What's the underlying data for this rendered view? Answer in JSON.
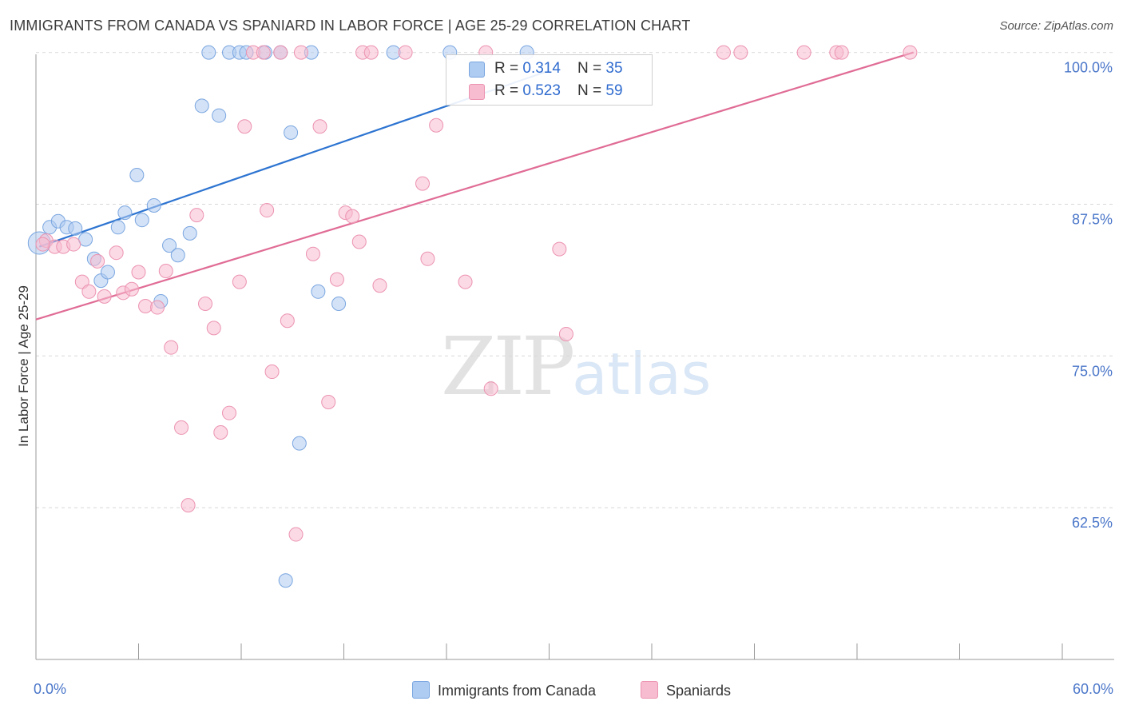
{
  "title": "IMMIGRANTS FROM CANADA VS SPANIARD IN LABOR FORCE | AGE 25-29 CORRELATION CHART",
  "source": "Source: ZipAtlas.com",
  "watermark": {
    "zip": "ZIP",
    "atlas": "atlas"
  },
  "legend": {
    "rows": [
      {
        "r_label": "R = ",
        "r_value": "0.314",
        "n_label": "N = ",
        "n_value": "35",
        "color": "#aecbf1"
      },
      {
        "r_label": "R = ",
        "r_value": "0.523",
        "n_label": "N = ",
        "n_value": "59",
        "color": "#f7bcd0"
      }
    ]
  },
  "bottom_legend": [
    "Immigrants from Canada",
    "Spaniards"
  ],
  "chart_data": {
    "type": "scatter",
    "title": "IMMIGRANTS FROM CANADA VS SPANIARD IN LABOR FORCE | AGE 25-29 CORRELATION CHART",
    "xlabel": "",
    "ylabel": "In Labor Force | Age 25-29",
    "xlim": [
      0,
      60
    ],
    "ylim": [
      50,
      100.5
    ],
    "x_tick_labels": [
      "0.0%",
      "60.0%"
    ],
    "y_ticks": [
      62.5,
      75.0,
      87.5,
      100.0
    ],
    "y_tick_labels": [
      "62.5%",
      "75.0%",
      "87.5%",
      "100.0%"
    ],
    "grid": true,
    "series": [
      {
        "name": "Immigrants from Canada",
        "color": "#aecbf1",
        "edge_color": "#7aa6e0",
        "line_color": "#2d74d1",
        "trend": {
          "x": [
            0.2,
            30.0
          ],
          "y": [
            84.0,
            98.5
          ]
        },
        "points": [
          {
            "x": 0.2,
            "y": 84.3,
            "big": true
          },
          {
            "x": 0.8,
            "y": 85.6
          },
          {
            "x": 1.3,
            "y": 86.1
          },
          {
            "x": 1.8,
            "y": 85.6
          },
          {
            "x": 2.3,
            "y": 85.5
          },
          {
            "x": 2.9,
            "y": 84.6
          },
          {
            "x": 3.4,
            "y": 83.0
          },
          {
            "x": 3.8,
            "y": 81.2
          },
          {
            "x": 4.2,
            "y": 81.9
          },
          {
            "x": 4.8,
            "y": 85.6
          },
          {
            "x": 5.2,
            "y": 86.8
          },
          {
            "x": 5.9,
            "y": 89.9
          },
          {
            "x": 6.2,
            "y": 86.2
          },
          {
            "x": 6.9,
            "y": 87.4
          },
          {
            "x": 7.3,
            "y": 79.5
          },
          {
            "x": 7.8,
            "y": 84.1
          },
          {
            "x": 8.3,
            "y": 83.3
          },
          {
            "x": 9.0,
            "y": 85.1
          },
          {
            "x": 9.7,
            "y": 95.6
          },
          {
            "x": 10.1,
            "y": 100.0
          },
          {
            "x": 10.7,
            "y": 94.8
          },
          {
            "x": 11.3,
            "y": 100.0
          },
          {
            "x": 11.9,
            "y": 100.0
          },
          {
            "x": 12.3,
            "y": 100.0
          },
          {
            "x": 13.4,
            "y": 100.0
          },
          {
            "x": 14.3,
            "y": 100.0
          },
          {
            "x": 14.6,
            "y": 56.5
          },
          {
            "x": 14.9,
            "y": 93.4
          },
          {
            "x": 15.4,
            "y": 67.8
          },
          {
            "x": 16.1,
            "y": 100.0
          },
          {
            "x": 16.5,
            "y": 80.3
          },
          {
            "x": 17.7,
            "y": 79.3
          },
          {
            "x": 20.9,
            "y": 100.0
          },
          {
            "x": 24.2,
            "y": 100.0
          },
          {
            "x": 28.7,
            "y": 100.0
          }
        ]
      },
      {
        "name": "Spaniards",
        "color": "#f7bcd0",
        "edge_color": "#ec93b0",
        "line_color": "#e06c95",
        "trend": {
          "x": [
            0.0,
            51.3
          ],
          "y": [
            78.0,
            100.0
          ]
        },
        "points": [
          {
            "x": 0.6,
            "y": 84.5
          },
          {
            "x": 1.1,
            "y": 84.0
          },
          {
            "x": 1.6,
            "y": 84.0
          },
          {
            "x": 2.2,
            "y": 84.2
          },
          {
            "x": 2.7,
            "y": 81.1
          },
          {
            "x": 3.1,
            "y": 80.3
          },
          {
            "x": 3.6,
            "y": 82.8
          },
          {
            "x": 4.0,
            "y": 79.9
          },
          {
            "x": 4.7,
            "y": 83.5
          },
          {
            "x": 5.1,
            "y": 80.2
          },
          {
            "x": 5.6,
            "y": 80.5
          },
          {
            "x": 6.0,
            "y": 81.9
          },
          {
            "x": 6.4,
            "y": 79.1
          },
          {
            "x": 7.1,
            "y": 79.0
          },
          {
            "x": 7.6,
            "y": 82.0
          },
          {
            "x": 7.9,
            "y": 75.7
          },
          {
            "x": 8.5,
            "y": 69.1
          },
          {
            "x": 8.9,
            "y": 62.7
          },
          {
            "x": 9.4,
            "y": 86.6
          },
          {
            "x": 9.9,
            "y": 79.3
          },
          {
            "x": 10.4,
            "y": 77.3
          },
          {
            "x": 10.8,
            "y": 68.7
          },
          {
            "x": 11.3,
            "y": 70.3
          },
          {
            "x": 11.9,
            "y": 81.1
          },
          {
            "x": 12.2,
            "y": 93.9
          },
          {
            "x": 12.7,
            "y": 100.0
          },
          {
            "x": 13.3,
            "y": 100.0
          },
          {
            "x": 13.5,
            "y": 87.0
          },
          {
            "x": 13.8,
            "y": 73.7
          },
          {
            "x": 14.3,
            "y": 100.0
          },
          {
            "x": 14.7,
            "y": 77.9
          },
          {
            "x": 15.2,
            "y": 60.3
          },
          {
            "x": 15.5,
            "y": 100.0
          },
          {
            "x": 16.2,
            "y": 83.4
          },
          {
            "x": 16.6,
            "y": 93.9
          },
          {
            "x": 17.1,
            "y": 71.2
          },
          {
            "x": 17.6,
            "y": 81.3
          },
          {
            "x": 18.1,
            "y": 86.8
          },
          {
            "x": 18.5,
            "y": 86.5
          },
          {
            "x": 18.9,
            "y": 84.4
          },
          {
            "x": 19.1,
            "y": 100.0
          },
          {
            "x": 19.6,
            "y": 100.0
          },
          {
            "x": 20.1,
            "y": 80.8
          },
          {
            "x": 21.6,
            "y": 100.0
          },
          {
            "x": 22.6,
            "y": 89.2
          },
          {
            "x": 22.9,
            "y": 83.0
          },
          {
            "x": 23.4,
            "y": 94.0
          },
          {
            "x": 25.1,
            "y": 81.1
          },
          {
            "x": 26.3,
            "y": 100.0
          },
          {
            "x": 26.6,
            "y": 72.3
          },
          {
            "x": 30.6,
            "y": 83.8
          },
          {
            "x": 31.0,
            "y": 76.8
          },
          {
            "x": 40.2,
            "y": 100.0
          },
          {
            "x": 41.2,
            "y": 100.0
          },
          {
            "x": 44.9,
            "y": 100.0
          },
          {
            "x": 46.8,
            "y": 100.0
          },
          {
            "x": 47.1,
            "y": 100.0
          },
          {
            "x": 51.1,
            "y": 100.0
          },
          {
            "x": 0.4,
            "y": 84.2
          }
        ]
      }
    ]
  }
}
